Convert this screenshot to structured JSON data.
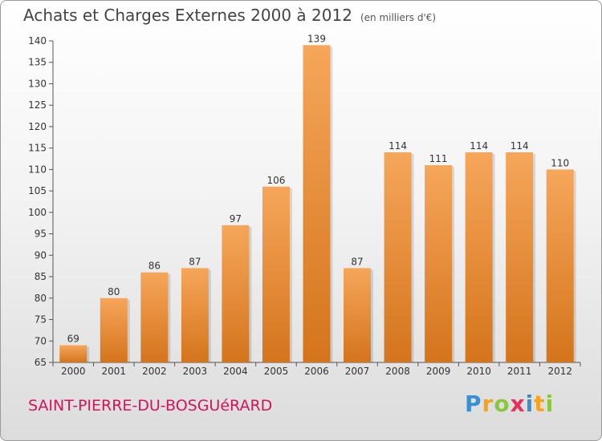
{
  "title": "Achats et Charges Externes 2000 à 2012",
  "subtitle": "(en milliers d'€)",
  "commune": "SAINT-PIERRE-DU-BOSGUéRARD",
  "logo": {
    "letters": [
      "P",
      "r",
      "o",
      "x",
      "i",
      "t",
      "i"
    ],
    "colors": [
      "#3a8fd0",
      "#f7a21b",
      "#8cc63f",
      "#e8305a",
      "#3a8fd0",
      "#f7a21b",
      "#8cc63f"
    ]
  },
  "colors": {
    "bar_top": "#f6a65a",
    "bar_bottom": "#d4741c",
    "title": "#444444",
    "commune": "#d4145a"
  },
  "chart_data": {
    "type": "bar",
    "title": "Achats et Charges Externes 2000 à 2012",
    "subtitle": "(en milliers d'€)",
    "categories": [
      "2000",
      "2001",
      "2002",
      "2003",
      "2004",
      "2005",
      "2006",
      "2007",
      "2008",
      "2009",
      "2010",
      "2011",
      "2012"
    ],
    "values": [
      69,
      80,
      86,
      87,
      97,
      106,
      139,
      87,
      114,
      111,
      114,
      114,
      110
    ],
    "ylim": [
      65,
      140
    ],
    "yticks": [
      65,
      70,
      75,
      80,
      85,
      90,
      95,
      100,
      105,
      110,
      115,
      120,
      125,
      130,
      135,
      140
    ],
    "grid": false,
    "data_labels": true
  }
}
